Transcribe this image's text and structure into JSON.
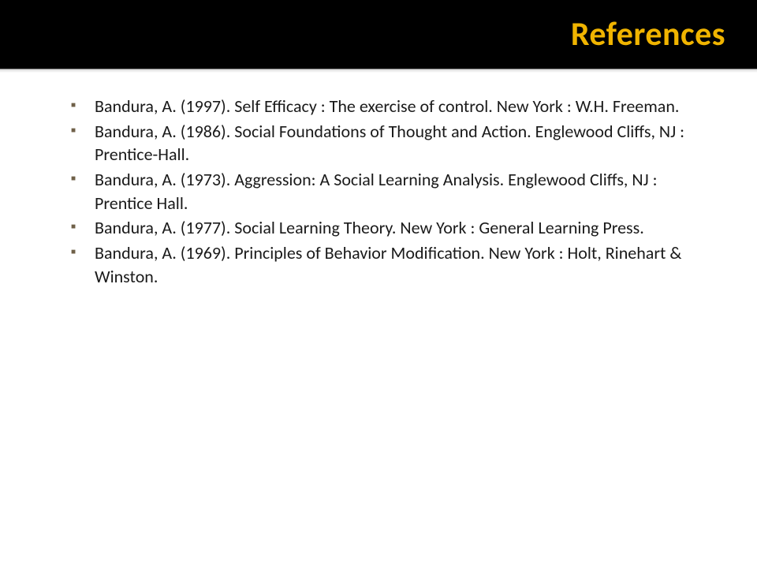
{
  "title": "References",
  "title_color": "#f0b400",
  "title_fontsize": 42,
  "header_bg": "#000000",
  "bullet_color": "#6f6048",
  "body_text_color": "#1a1a1a",
  "body_fontsize": 22,
  "references": [
    "Bandura, A. (1997). Self Efficacy : The exercise of control. New York : W.H. Freeman.",
    "Bandura, A. (1986). Social Foundations of Thought and Action. Englewood Cliffs, NJ : Prentice-Hall.",
    "Bandura, A. (1973). Aggression: A Social Learning Analysis. Englewood Cliffs, NJ : Prentice Hall.",
    "Bandura, A. (1977). Social Learning Theory. New York : General Learning Press.",
    "Bandura, A. (1969). Principles of Behavior Modification. New York : Holt, Rinehart & Winston."
  ]
}
